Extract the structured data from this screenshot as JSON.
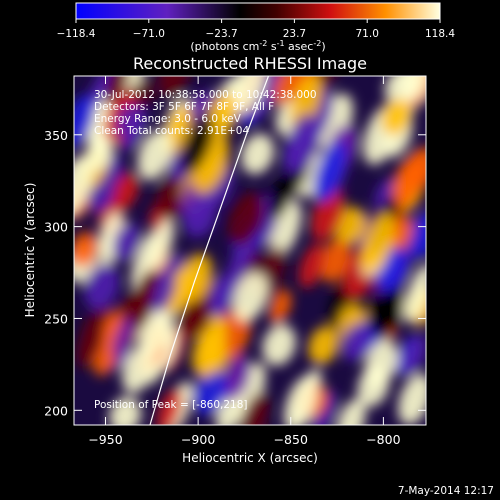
{
  "chart_data": {
    "type": "heatmap",
    "title": "Reconstructed RHESSI Image",
    "xlabel": "Heliocentric X (arcsec)",
    "ylabel": "Heliocentric Y (arcsec)",
    "xlim": [
      -967,
      -777
    ],
    "ylim": [
      192,
      382
    ],
    "xticks": [
      -950,
      -900,
      -850,
      -800
    ],
    "yticks": [
      200,
      250,
      300,
      350
    ],
    "colorbar": {
      "label_main": "(photons cm",
      "label_exp1": "-2",
      "label_mid": " s",
      "label_exp2": "-1",
      "label_end": " asec",
      "label_exp3": "-2",
      "label_close": ")",
      "range": [
        -118.4,
        118.4
      ],
      "ticks": [
        "-118.4",
        "-71.0",
        "-23.7",
        "23.7",
        "71.0",
        "118.4"
      ]
    },
    "annotations": [
      "30-Jul-2012 10:38:58.000 to 10:42:38.000",
      "Detectors: 3F 5F 6F 7F 8F 9F, All F",
      "Energy Range: 3.0 - 6.0 keV",
      "Clean    Total counts: 2.91E+04"
    ],
    "peak_text": "Position of Peak = [-860,218]",
    "limb": [
      [
        -926,
        192
      ],
      [
        -915,
        230
      ],
      [
        -902,
        270
      ],
      [
        -888,
        310
      ],
      [
        -874,
        350
      ],
      [
        -862,
        382
      ]
    ],
    "timestamp": "7-May-2014 12:17"
  }
}
